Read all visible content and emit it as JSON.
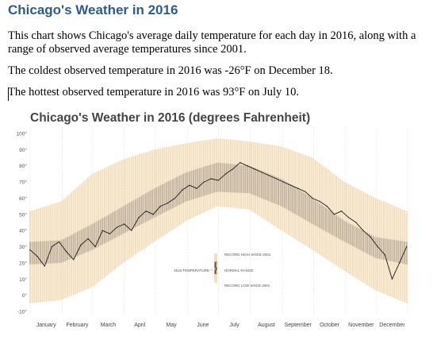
{
  "doc": {
    "heading": "Chicago's Weather in 2016",
    "para1_line1": "This chart shows Chicago's average daily temperature for each day in 2016, along with a",
    "para1_line2": "range of observed average temperatures since 2001.",
    "para2": "The coldest observed temperature in 2016 was -26°F on December 18.",
    "para3": "The hottest observed temperature in 2016 was 93°F on July 10."
  },
  "colors": {
    "heading": "#2e5a8c",
    "record_range": "#f3dfbf",
    "normal_range": "#bfae96",
    "temp_line": "#1a1a1a",
    "grid": "#d8d8d8"
  },
  "chart_data": {
    "type": "line",
    "title": "Chicago's Weather in 2016 (degrees Fahrenheit)",
    "xlabel": "",
    "ylabel": "",
    "ylim": [
      -10,
      100
    ],
    "yticks": [
      "-10°",
      "0°",
      "10°",
      "20°",
      "30°",
      "40°",
      "50°",
      "60°",
      "70°",
      "80°",
      "90°",
      "100°"
    ],
    "yticks_values": [
      -10,
      0,
      10,
      20,
      30,
      40,
      50,
      60,
      70,
      80,
      90,
      100
    ],
    "months": [
      "January",
      "February",
      "March",
      "April",
      "May",
      "June",
      "July",
      "August",
      "September",
      "October",
      "November",
      "December"
    ],
    "grid": "vertical dotted month dividers",
    "legend": {
      "placement": "center",
      "record_high": "RECORD HIGH SINCE 2001",
      "normal_range": "NORMAL RANGE",
      "record_low": "RECORD LOW SINCE 2001",
      "series": "2016 TEMPERATURE"
    },
    "series": [
      {
        "name": "2016 TEMPERATURE",
        "x": [
          1,
          8,
          15,
          22,
          29,
          36,
          43,
          50,
          57,
          64,
          71,
          78,
          85,
          92,
          99,
          106,
          113,
          120,
          127,
          134,
          141,
          148,
          155,
          162,
          169,
          176,
          183,
          190,
          197,
          204,
          211,
          218,
          225,
          232,
          239,
          246,
          253,
          260,
          267,
          274,
          281,
          288,
          295,
          302,
          309,
          316,
          323,
          330,
          337,
          344,
          351,
          358,
          365
        ],
        "y": [
          28,
          24,
          18,
          30,
          33,
          27,
          22,
          31,
          35,
          30,
          40,
          38,
          42,
          44,
          40,
          48,
          52,
          50,
          55,
          57,
          60,
          65,
          68,
          66,
          70,
          72,
          71,
          75,
          78,
          82,
          80,
          78,
          76,
          74,
          72,
          70,
          68,
          66,
          64,
          60,
          58,
          55,
          50,
          52,
          48,
          45,
          40,
          36,
          30,
          25,
          10,
          20,
          30
        ]
      },
      {
        "name": "NORMAL RANGE",
        "x": [
          1,
          31,
          61,
          91,
          121,
          152,
          182,
          213,
          244,
          274,
          305,
          335,
          365
        ],
        "low": [
          19,
          20,
          28,
          38,
          48,
          58,
          64,
          63,
          55,
          44,
          33,
          23,
          19
        ],
        "high": [
          33,
          34,
          44,
          55,
          66,
          76,
          82,
          80,
          72,
          60,
          46,
          36,
          33
        ]
      },
      {
        "name": "RECORD RANGE",
        "x": [
          1,
          31,
          61,
          91,
          121,
          152,
          182,
          213,
          244,
          274,
          305,
          335,
          365
        ],
        "low": [
          -5,
          -3,
          5,
          20,
          33,
          46,
          55,
          53,
          40,
          28,
          15,
          3,
          -5
        ],
        "high": [
          52,
          58,
          75,
          84,
          90,
          94,
          97,
          95,
          92,
          85,
          70,
          60,
          52
        ]
      }
    ]
  }
}
